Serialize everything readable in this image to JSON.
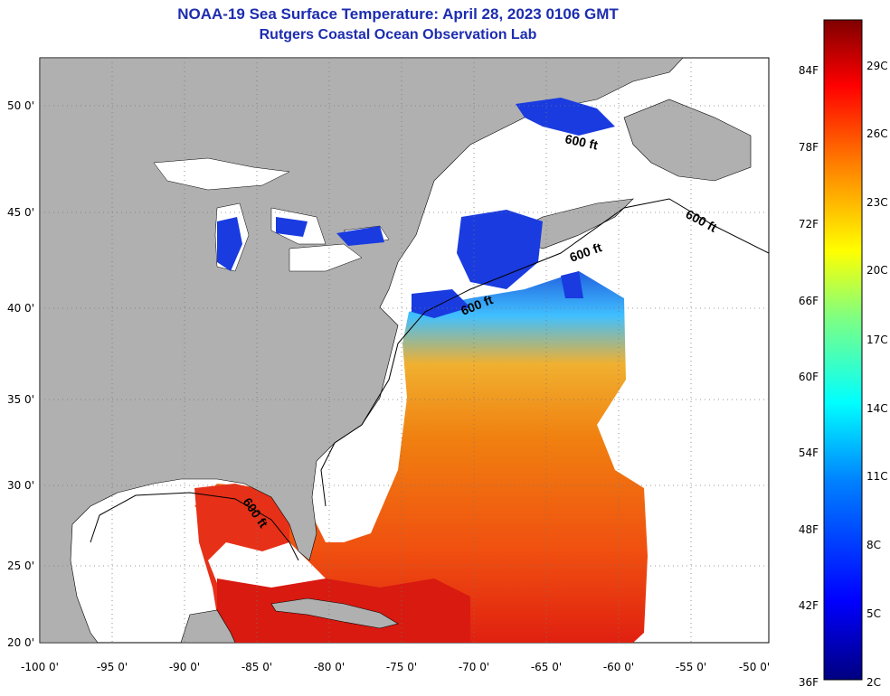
{
  "header": {
    "title_line1": "NOAA-19 Sea Surface Temperature:  April 28, 2023 0106 GMT",
    "title_line2": "Rutgers Coastal Ocean Observation Lab"
  },
  "map": {
    "lon_labels": [
      "-100 0'",
      "-95 0'",
      "-90 0'",
      "-85 0'",
      "-80 0'",
      "-75 0'",
      "-70 0'",
      "-65 0'",
      "-60 0'",
      "-55 0'",
      "-50 0'"
    ],
    "lat_labels": [
      "50 0'",
      "45 0'",
      "40 0'",
      "35 0'",
      "30 0'",
      "25 0'",
      "20 0'"
    ],
    "contour_label": "600 ft",
    "colors": {
      "land": "#b0b0b0",
      "no_data": "#ffffff",
      "cold": "#1030e0",
      "warm": "#f07010",
      "hot": "#e02010"
    }
  },
  "colorbar": {
    "fahrenheit_labels": [
      "84F",
      "78F",
      "72F",
      "66F",
      "60F",
      "54F",
      "48F",
      "42F",
      "36F"
    ],
    "celsius_labels": [
      "29C",
      "26C",
      "23C",
      "20C",
      "17C",
      "14C",
      "11C",
      "8C",
      "5C",
      "2C"
    ],
    "gradient_colors": [
      "#800000",
      "#ff0000",
      "#ff8000",
      "#ffff00",
      "#80ff80",
      "#00ffff",
      "#0080ff",
      "#0000ff",
      "#000080"
    ]
  }
}
